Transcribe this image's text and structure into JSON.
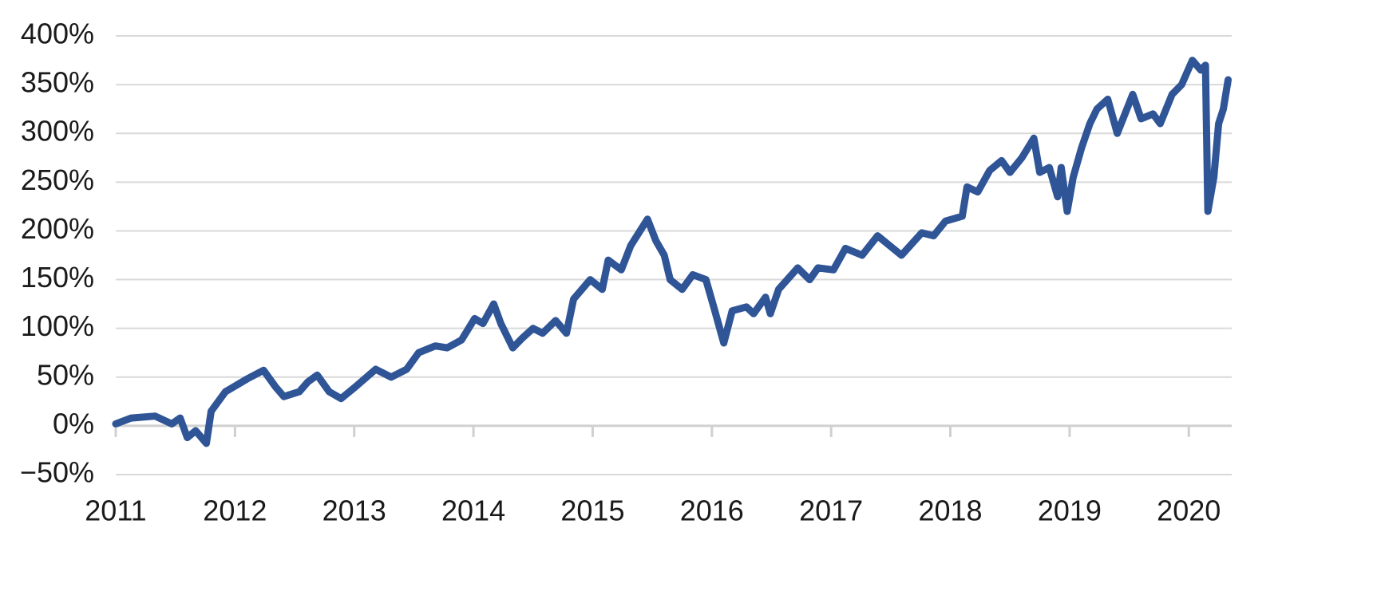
{
  "chart_data": {
    "type": "line",
    "x": [
      2011,
      2011.13,
      2011.33,
      2011.47,
      2011.54,
      2011.6,
      2011.67,
      2011.76,
      2011.8,
      2011.92,
      2012.1,
      2012.24,
      2012.34,
      2012.41,
      2012.54,
      2012.61,
      2012.69,
      2012.79,
      2012.89,
      2013.01,
      2013.18,
      2013.31,
      2013.44,
      2013.54,
      2013.68,
      2013.78,
      2013.9,
      2014.01,
      2014.08,
      2014.17,
      2014.23,
      2014.33,
      2014.41,
      2014.5,
      2014.58,
      2014.69,
      2014.78,
      2014.84,
      2014.98,
      2015.08,
      2015.13,
      2015.24,
      2015.32,
      2015.46,
      2015.53,
      2015.6,
      2015.65,
      2015.75,
      2015.84,
      2015.95,
      2016.02,
      2016.1,
      2016.17,
      2016.29,
      2016.35,
      2016.45,
      2016.49,
      2016.56,
      2016.72,
      2016.82,
      2016.89,
      2017.02,
      2017.12,
      2017.26,
      2017.39,
      2017.49,
      2017.59,
      2017.76,
      2017.86,
      2017.96,
      2018.1,
      2018.14,
      2018.23,
      2018.33,
      2018.43,
      2018.5,
      2018.6,
      2018.7,
      2018.75,
      2018.83,
      2018.9,
      2018.93,
      2018.98,
      2019.03,
      2019.1,
      2019.17,
      2019.23,
      2019.32,
      2019.4,
      2019.53,
      2019.6,
      2019.7,
      2019.76,
      2019.86,
      2019.94,
      2020.03,
      2020.1,
      2020.14,
      2020.16,
      2020.21,
      2020.25,
      2020.29,
      2020.33
    ],
    "series": [
      {
        "color": "#2f5597",
        "values": [
          2,
          8,
          10,
          2,
          8,
          -12,
          -5,
          -18,
          15,
          35,
          48,
          57,
          40,
          30,
          35,
          45,
          52,
          35,
          28,
          40,
          58,
          50,
          58,
          75,
          82,
          80,
          88,
          110,
          105,
          125,
          105,
          80,
          90,
          100,
          95,
          108,
          95,
          130,
          150,
          140,
          170,
          160,
          185,
          212,
          190,
          175,
          150,
          140,
          155,
          150,
          120,
          85,
          118,
          122,
          115,
          132,
          115,
          140,
          162,
          150,
          162,
          160,
          182,
          175,
          195,
          185,
          175,
          198,
          195,
          210,
          215,
          245,
          240,
          262,
          272,
          260,
          275,
          295,
          260,
          265,
          235,
          265,
          220,
          255,
          285,
          310,
          325,
          335,
          300,
          340,
          315,
          320,
          310,
          340,
          350,
          375,
          365,
          370,
          220,
          255,
          310,
          325,
          355
        ]
      }
    ],
    "xlim": [
      2011,
      2020.36
    ],
    "xticks": [
      2011,
      2012,
      2013,
      2014,
      2015,
      2016,
      2017,
      2018,
      2019,
      2020
    ],
    "ylim": [
      -50,
      400
    ],
    "yticks": [
      {
        "value": -50,
        "label": "−50%"
      },
      {
        "value": 0,
        "label": "0%"
      },
      {
        "value": 50,
        "label": "50%"
      },
      {
        "value": 100,
        "label": "100%"
      },
      {
        "value": 150,
        "label": "150%"
      },
      {
        "value": 200,
        "label": "200%"
      },
      {
        "value": 250,
        "label": "250%"
      },
      {
        "value": 300,
        "label": "300%"
      },
      {
        "value": 350,
        "label": "350%"
      },
      {
        "value": 400,
        "label": "400%"
      }
    ],
    "grid": true
  }
}
